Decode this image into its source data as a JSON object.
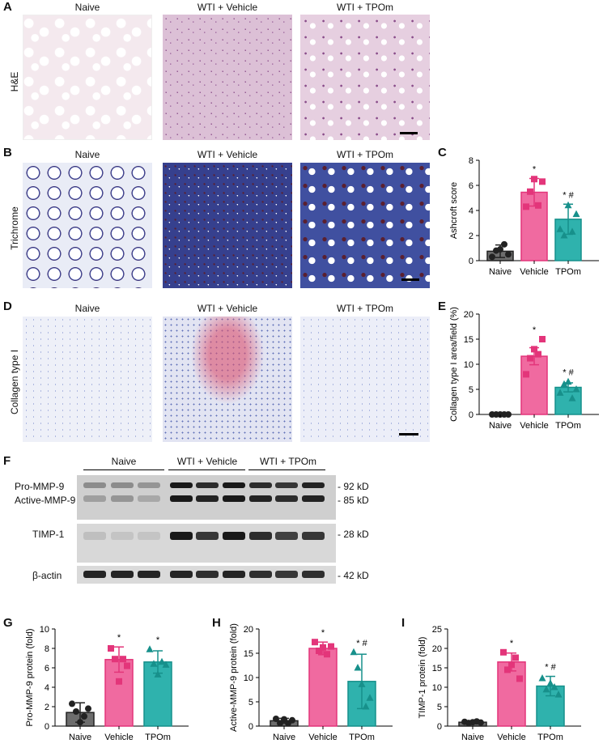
{
  "panels": {
    "A": {
      "label": "A",
      "row_label": "H&E",
      "titles": [
        "Naive",
        "WTI + Vehicle",
        "WTI + TPOm"
      ]
    },
    "B": {
      "label": "B",
      "row_label": "Trichrome",
      "titles": [
        "Naive",
        "WTI + Vehicle",
        "WTI + TPOm"
      ]
    },
    "C": {
      "label": "C"
    },
    "D": {
      "label": "D",
      "row_label": "Collagen type I",
      "titles": [
        "Naive",
        "WTI + Vehicle",
        "WTI + TPOm"
      ]
    },
    "E": {
      "label": "E"
    },
    "F": {
      "label": "F",
      "groups": [
        "Naive",
        "WTI + Vehicle",
        "WTI + TPOm"
      ],
      "rows": [
        {
          "name": "Pro-MMP-9",
          "name2": "Active-MMP-9",
          "kd": "- 92 kD",
          "kd2": "- 85 kD"
        },
        {
          "name": "TIMP-1",
          "kd": "- 28 kD"
        },
        {
          "name": "β-actin",
          "kd": "- 42 kD"
        }
      ]
    },
    "G": {
      "label": "G"
    },
    "H": {
      "label": "H"
    },
    "I": {
      "label": "I"
    }
  },
  "colors": {
    "naive": "#6d6d6d",
    "vehicle": "#f06aa0",
    "tpom": "#2fb2ad",
    "naive_edge": "#222",
    "vehicle_edge": "#e3357a",
    "tpom_edge": "#17908b"
  },
  "chart_data": [
    {
      "id": "C",
      "type": "bar",
      "categories": [
        "Naive",
        "Vehicle",
        "TPOm"
      ],
      "values": [
        0.75,
        5.45,
        3.3
      ],
      "errors": [
        0.5,
        1.1,
        1.2
      ],
      "points": [
        [
          0.3,
          0.8,
          0.9,
          1.3,
          0.5
        ],
        [
          4.3,
          5.5,
          6.5,
          4.4,
          6.3
        ],
        [
          2.5,
          2.0,
          4.4,
          2.3,
          3.7
        ]
      ],
      "xlabel": "",
      "ylabel": "Ashcroft score",
      "ylim": [
        0,
        8
      ],
      "yticks": [
        0,
        2,
        4,
        6,
        8
      ],
      "annotations": [
        "",
        "*",
        "* #"
      ]
    },
    {
      "id": "E",
      "type": "bar",
      "categories": [
        "Naive",
        "Vehicle",
        "TPOm"
      ],
      "values": [
        0,
        11.6,
        5.4
      ],
      "errors": [
        0,
        1.7,
        0.9
      ],
      "points": [
        [
          0,
          0,
          0,
          0,
          0
        ],
        [
          8.0,
          11.2,
          13.0,
          12.0,
          15.0
        ],
        [
          4.3,
          6.0,
          6.5,
          3.2,
          5.0
        ]
      ],
      "xlabel": "",
      "ylabel": "Collagen type I area/field (%)",
      "ylim": [
        0,
        20
      ],
      "yticks": [
        0,
        5,
        10,
        15,
        20
      ],
      "annotations": [
        "",
        "*",
        "* #"
      ]
    },
    {
      "id": "G",
      "type": "bar",
      "categories": [
        "Naive",
        "Vehicle",
        "TPOm"
      ],
      "values": [
        1.4,
        6.85,
        6.6
      ],
      "errors": [
        1.0,
        1.3,
        1.15
      ],
      "points": [
        [
          2.3,
          1.5,
          0.4,
          1.0,
          1.8
        ],
        [
          8.0,
          6.9,
          4.6,
          6.9,
          6.2
        ],
        [
          7.9,
          6.4,
          5.3,
          6.6,
          6.3
        ]
      ],
      "xlabel": "",
      "ylabel": "Pro-MMP-9 protein (fold)",
      "ylim": [
        0,
        10
      ],
      "yticks": [
        0,
        2,
        4,
        6,
        8,
        10
      ],
      "annotations": [
        "",
        "*",
        "*"
      ]
    },
    {
      "id": "H",
      "type": "bar",
      "categories": [
        "Naive",
        "Vehicle",
        "TPOm"
      ],
      "values": [
        1.1,
        16.0,
        9.2
      ],
      "errors": [
        0.5,
        1.3,
        5.6
      ],
      "points": [
        [
          1.5,
          0.6,
          1.4,
          0.6,
          1.2
        ],
        [
          17.3,
          15.5,
          16.2,
          14.8,
          16.4
        ],
        [
          15.2,
          12.0,
          8.6,
          4.0,
          5.8
        ]
      ],
      "xlabel": "",
      "ylabel": "Active-MMP-9 protein (fold)",
      "ylim": [
        0,
        20
      ],
      "yticks": [
        0,
        5,
        10,
        15,
        20
      ],
      "annotations": [
        "",
        "*",
        "* #"
      ]
    },
    {
      "id": "I",
      "type": "bar",
      "categories": [
        "Naive",
        "Vehicle",
        "TPOm"
      ],
      "values": [
        1.0,
        16.5,
        10.3
      ],
      "errors": [
        0.3,
        2.3,
        2.5
      ],
      "points": [
        [
          1.1,
          0.8,
          1.0,
          1.2,
          0.9
        ],
        [
          19.0,
          14.5,
          15.8,
          17.6,
          12.2
        ],
        [
          12.3,
          9.4,
          11.0,
          10.0,
          8.1
        ]
      ],
      "xlabel": "",
      "ylabel": "TIMP-1 protein (fold)",
      "ylim": [
        0,
        25
      ],
      "yticks": [
        0,
        5,
        10,
        15,
        20,
        25
      ],
      "annotations": [
        "",
        "*",
        "* #"
      ]
    }
  ]
}
